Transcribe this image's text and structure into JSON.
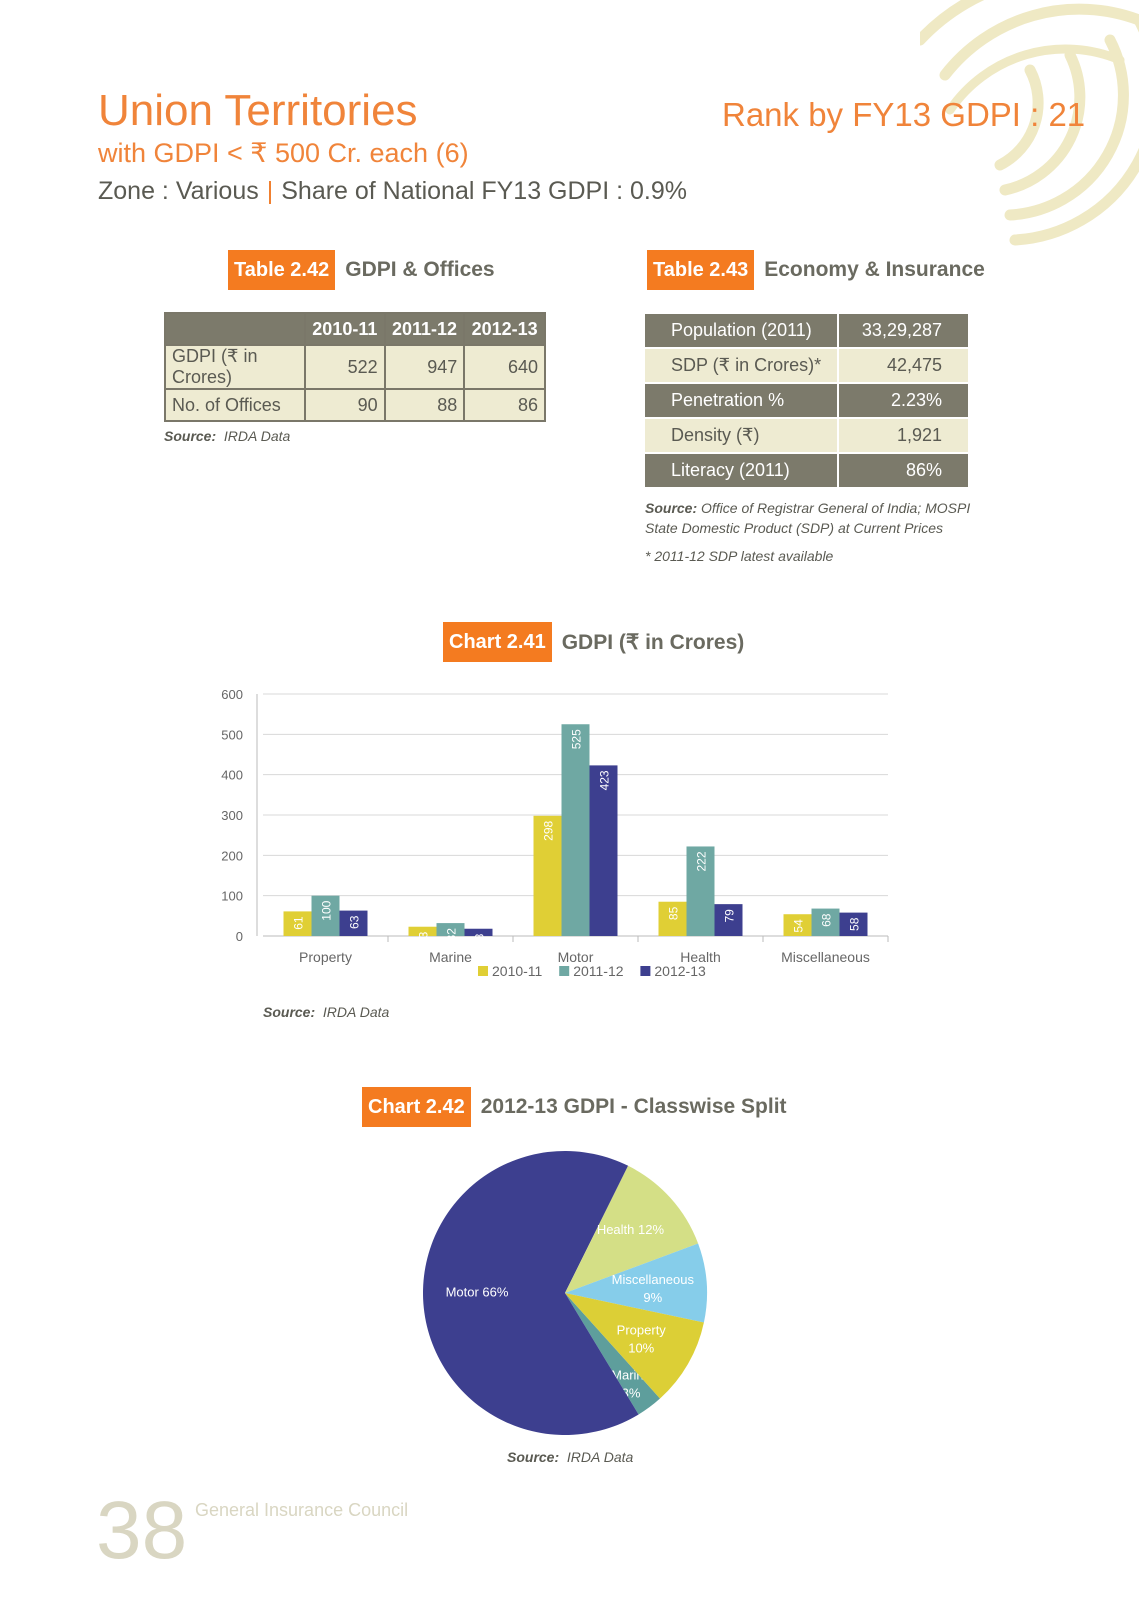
{
  "header": {
    "title": "Union Territories",
    "subtitle": "with GDPI < ₹ 500 Cr. each (6)",
    "zone": "Zone : Various",
    "separator": "|",
    "share": "Share of National FY13 GDPI : 0.9%",
    "rank": "Rank by FY13 GDPI : 21"
  },
  "table_242": {
    "tag": "Table 2.42",
    "title": "GDPI & Offices",
    "columns": [
      "",
      "2010-11",
      "2011-12",
      "2012-13"
    ],
    "rows": [
      [
        "GDPI (₹ in Crores)",
        "522",
        "947",
        "640"
      ],
      [
        "No. of Offices",
        "90",
        "88",
        "86"
      ]
    ],
    "source_label": "Source:",
    "source_text": "IRDA Data"
  },
  "table_243": {
    "tag": "Table 2.43",
    "title": "Economy & Insurance",
    "rows": [
      [
        "Population (2011)",
        "33,29,287"
      ],
      [
        "SDP (₹ in Crores)*",
        "42,475"
      ],
      [
        "Penetration %",
        "2.23%"
      ],
      [
        "Density (₹)",
        "1,921"
      ],
      [
        "Literacy (2011)",
        "86%"
      ]
    ],
    "source_label": "Source:",
    "source_line1": "Office of Registrar General of India; MOSPI",
    "source_line2": "State Domestic Product (SDP) at Current Prices",
    "footnote": "* 2011-12 SDP latest available"
  },
  "chart_241_caption": {
    "tag": "Chart 2.41",
    "title": "GDPI (₹ in Crores)",
    "source_label": "Source:",
    "source_text": "IRDA Data"
  },
  "chart_242_caption": {
    "tag": "Chart 2.42",
    "title": "2012-13 GDPI - Classwise Split",
    "source_label": "Source:",
    "source_text": "IRDA Data"
  },
  "chart_data": [
    {
      "type": "bar",
      "title": "GDPI (₹ in Crores)",
      "categories": [
        "Property",
        "Marine",
        "Motor",
        "Health",
        "Miscellaneous"
      ],
      "series": [
        {
          "name": "2010-11",
          "values": [
            61,
            23,
            298,
            85,
            54
          ],
          "color": "#e0cf35"
        },
        {
          "name": "2011-12",
          "values": [
            100,
            32,
            525,
            222,
            68
          ],
          "color": "#6fa8a3"
        },
        {
          "name": "2012-13",
          "values": [
            63,
            18,
            423,
            79,
            58
          ],
          "color": "#3d3f8f"
        }
      ],
      "ylim": [
        0,
        600
      ],
      "yticks": [
        0,
        100,
        200,
        300,
        400,
        500,
        600
      ],
      "grid": true,
      "legend": "bottom"
    },
    {
      "type": "pie",
      "title": "2012-13 GDPI - Classwise Split",
      "slices": [
        {
          "label": "Motor 66%",
          "value": 66,
          "color": "#3d3f8f"
        },
        {
          "label": "Health 12%",
          "value": 12,
          "color": "#d4df86"
        },
        {
          "label": "Miscellaneous 9%",
          "value": 9,
          "color": "#86cdea"
        },
        {
          "label": "Property 10%",
          "value": 10,
          "color": "#dccf36"
        },
        {
          "label": "Marine 3%",
          "value": 3,
          "color": "#5e9e9c"
        }
      ]
    }
  ],
  "footer": {
    "page_number": "38",
    "publisher": "General Insurance Council"
  }
}
